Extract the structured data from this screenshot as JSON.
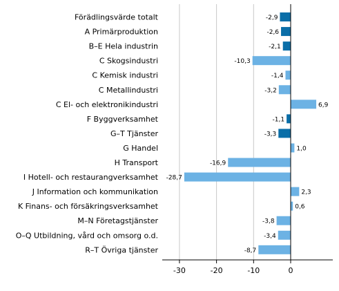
{
  "chart_data": {
    "type": "bar",
    "orientation": "horizontal",
    "title": "",
    "xlabel": "",
    "ylabel": "",
    "xlim": [
      -33,
      11.5
    ],
    "xticks": [
      -30,
      -20,
      -10,
      0
    ],
    "grid": true,
    "legend": "none",
    "colors": {
      "highlight": "#0a6ea8",
      "default": "#6cb2e4",
      "grid": "#c8c8c8",
      "axis": "#000000"
    },
    "categories": [
      "Förädlingsvärde totalt",
      "A Primärproduktion",
      "B–E Hela industrin",
      "C Skogsindustri",
      "C Kemisk industri",
      "C Metallindustri",
      "C El- och elektronikindustri",
      "F Byggverksamhet",
      "G–T Tjänster",
      "G Handel",
      "H Transport",
      "I Hotell- och restaurangverksamhet",
      "J Information och kommunikation",
      "K Finans- och försäkringsverksamhet",
      "M–N Företagstjänster",
      "O–Q Utbildning, vård och omsorg o.d.",
      "R–T Övriga tjänster"
    ],
    "values": [
      -2.9,
      -2.6,
      -2.1,
      -10.3,
      -1.4,
      -3.2,
      6.9,
      -1.1,
      -3.3,
      1.0,
      -16.9,
      -28.7,
      2.3,
      0.6,
      -3.8,
      -3.4,
      -8.7
    ],
    "value_labels": [
      "-2,9",
      "-2,6",
      "-2,1",
      "-10,3",
      "-1,4",
      "-3,2",
      "6,9",
      "-1,1",
      "-3,3",
      "1,0",
      "-16,9",
      "-28,7",
      "2,3",
      "0,6",
      "-3,8",
      "-3,4",
      "-8,7"
    ],
    "highlighted": [
      true,
      true,
      true,
      false,
      false,
      false,
      false,
      true,
      true,
      false,
      false,
      false,
      false,
      false,
      false,
      false,
      false
    ],
    "tick_labels": [
      "-30",
      "-20",
      "-10",
      "0"
    ]
  }
}
